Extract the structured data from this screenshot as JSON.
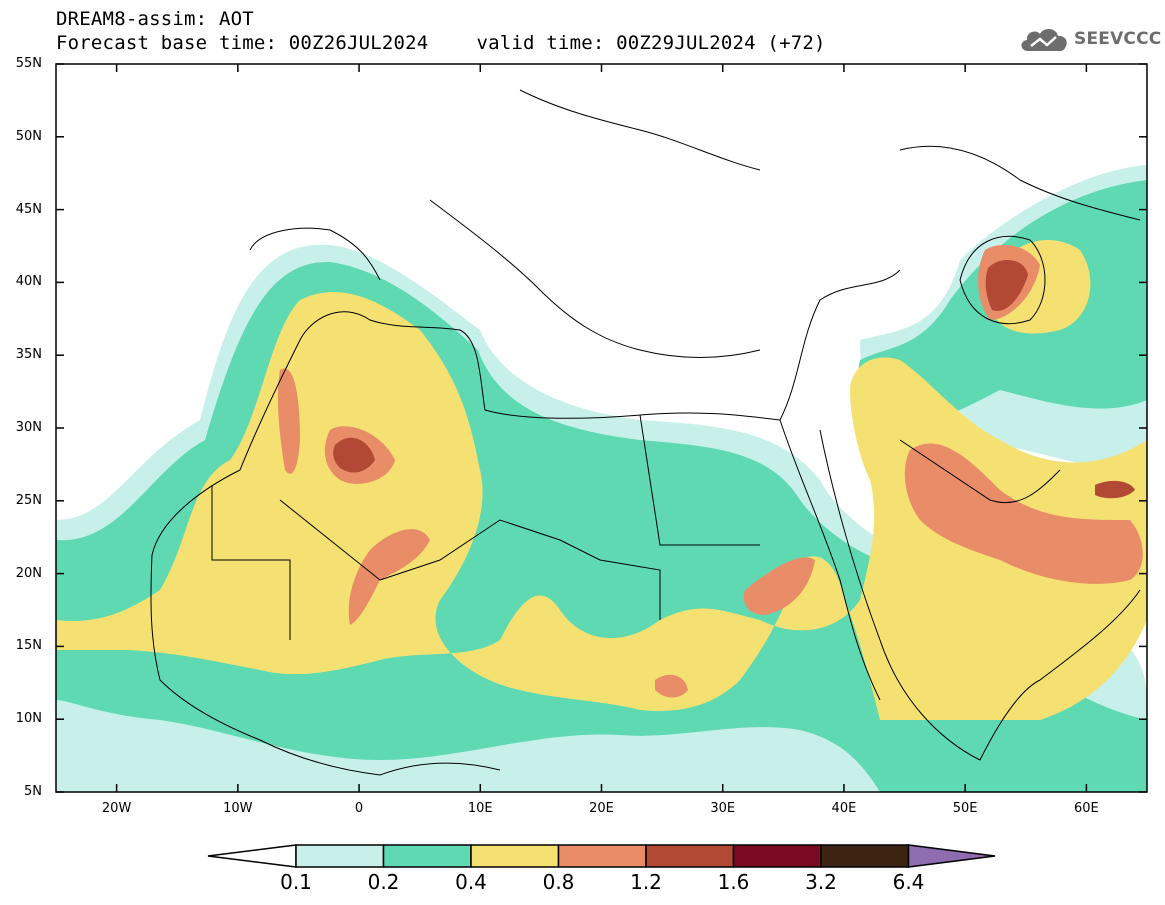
{
  "title": {
    "line1": "DREAM8-assim: AOT",
    "line2_left": "Forecast base time: 00Z26JUL2024",
    "line2_right": "valid time: 00Z29JUL2024 (+72)"
  },
  "logo": {
    "text": "SEEVCCC",
    "icon": "cloud-icon",
    "color": "#6d6d6d"
  },
  "map": {
    "projection": "latitude-longitude",
    "lon_range": [
      -25,
      65
    ],
    "lat_range": [
      5,
      55
    ],
    "y_tick_labels": [
      "55N",
      "50N",
      "45N",
      "40N",
      "35N",
      "30N",
      "25N",
      "20N",
      "15N",
      "10N",
      "5N"
    ],
    "x_tick_labels": [
      "20W",
      "10W",
      "0",
      "10E",
      "20E",
      "30E",
      "40E",
      "50E",
      "60E"
    ],
    "y_tick_values": [
      55,
      50,
      45,
      40,
      35,
      30,
      25,
      20,
      15,
      10,
      5
    ],
    "x_tick_values": [
      -20,
      -10,
      0,
      10,
      20,
      30,
      40,
      50,
      60
    ],
    "ocean_color": "#ffffff",
    "outline_color": "#000000"
  },
  "legend": {
    "labels": [
      "0.1",
      "0.2",
      "0.4",
      "0.8",
      "1.2",
      "1.6",
      "3.2",
      "6.4"
    ],
    "colors": [
      "#ffffff",
      "#c8f0ea",
      "#5ed9b2",
      "#f5e172",
      "#e88d68",
      "#b24935",
      "#7d0a24",
      "#3b2412",
      "#8f6bb0"
    ]
  }
}
